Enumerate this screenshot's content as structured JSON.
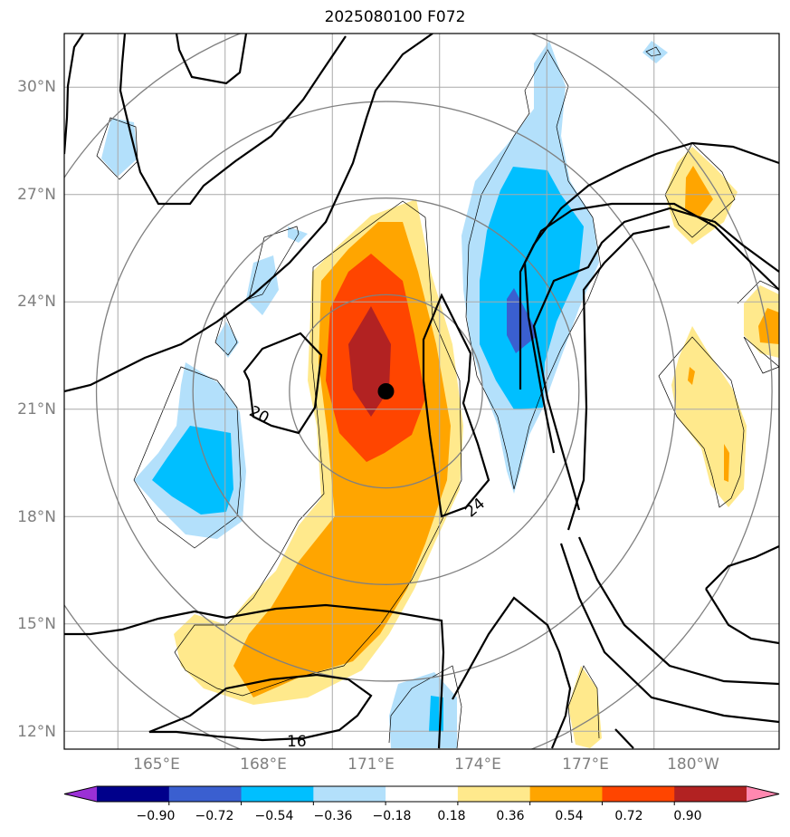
{
  "title": "2025080100 F072",
  "map": {
    "extent": {
      "lon_min": 163.5,
      "lon_max": 183.5,
      "lat_min": 11.5,
      "lat_max": 31.5
    },
    "lat_ticks": [
      {
        "value": 30,
        "label": "30°N"
      },
      {
        "value": 27,
        "label": "27°N"
      },
      {
        "value": 24,
        "label": "24°N"
      },
      {
        "value": 21,
        "label": "21°N"
      },
      {
        "value": 18,
        "label": "18°N"
      },
      {
        "value": 15,
        "label": "15°N"
      },
      {
        "value": 12,
        "label": "12°N"
      }
    ],
    "lon_ticks": [
      {
        "value": 165,
        "label": "165°E"
      },
      {
        "value": 168,
        "label": "168°E"
      },
      {
        "value": 171,
        "label": "171°E"
      },
      {
        "value": 174,
        "label": "174°E"
      },
      {
        "value": 177,
        "label": "177°E"
      },
      {
        "value": 180,
        "label": "180°W"
      }
    ],
    "storm_center": {
      "lon": 172.5,
      "lat": 21.5
    },
    "range_rings": {
      "center": {
        "lon": 172.5,
        "lat": 21.5
      },
      "radii_deg": [
        2.7,
        5.4,
        8.1,
        10.8
      ]
    },
    "contour_labels": [
      "20",
      "24",
      "16"
    ],
    "colorbar": {
      "levels": [
        "−0.90",
        "−0.72",
        "−0.54",
        "−0.36",
        "−0.18",
        "0.18",
        "0.36",
        "0.54",
        "0.72",
        "0.90"
      ],
      "colors": [
        "#9b30d6",
        "#00008b",
        "#3a5fd0",
        "#00bfff",
        "#b3e0fb",
        "#ffffff",
        "#ffe98c",
        "#ffa500",
        "#ff4500",
        "#b22222",
        "#ff88b0"
      ]
    }
  }
}
